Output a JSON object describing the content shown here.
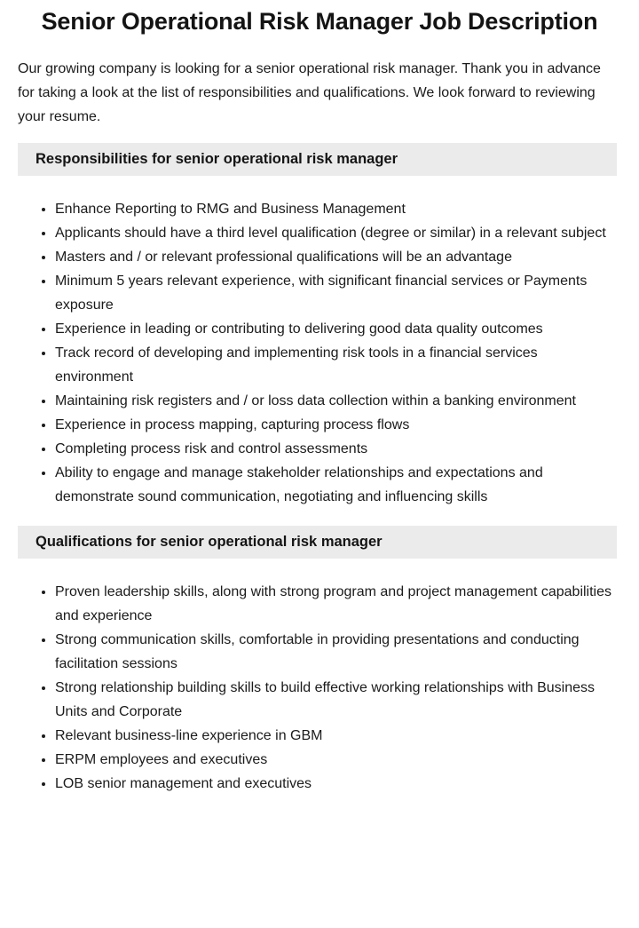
{
  "page": {
    "title": "Senior Operational Risk Manager Job Description",
    "intro": "Our growing company is looking for a senior operational risk manager. Thank you in advance for taking a look at the list of responsibilities and qualifications. We look forward to reviewing your resume.",
    "sections": [
      {
        "heading": "Responsibilities for senior operational risk manager",
        "items": [
          "Enhance Reporting to RMG and Business Management",
          "Applicants should have a third level qualification (degree or similar) in a relevant subject",
          "Masters and / or relevant professional qualifications will be an advantage",
          "Minimum 5 years relevant experience, with significant financial services or Payments exposure",
          "Experience in leading or contributing to delivering good data quality outcomes",
          "Track record of developing and implementing risk tools in a financial services environment",
          "Maintaining risk registers and / or loss data collection within a banking environment",
          "Experience in process mapping, capturing process flows",
          "Completing process risk and control assessments",
          "Ability to engage and manage stakeholder relationships and expectations and demonstrate sound communication, negotiating and influencing skills"
        ]
      },
      {
        "heading": "Qualifications for senior operational risk manager",
        "items": [
          "Proven leadership skills, along with strong program and project management capabilities and experience",
          "Strong communication skills, comfortable in providing presentations and conducting facilitation sessions",
          "Strong relationship building skills to build effective working relationships with Business Units and Corporate",
          "Relevant business-line experience in GBM",
          "ERPM employees and executives",
          "LOB senior management and executives"
        ]
      }
    ]
  },
  "colors": {
    "background": "#ffffff",
    "text": "#1b1b1b",
    "section_heading_bg": "#ebebeb"
  }
}
